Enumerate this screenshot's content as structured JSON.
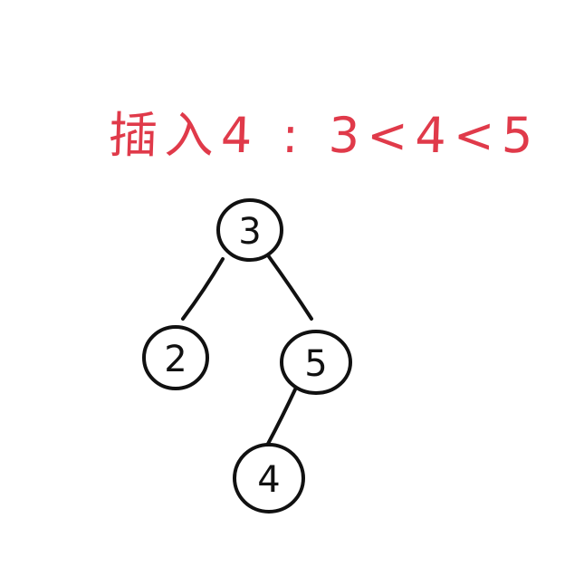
{
  "caption": "插入4 : 3<4<5",
  "colors": {
    "caption": "#e03a4a",
    "ink": "#111111",
    "background": "#ffffff"
  },
  "tree": {
    "nodes": [
      {
        "id": "n3",
        "label": "3"
      },
      {
        "id": "n2",
        "label": "2"
      },
      {
        "id": "n5",
        "label": "5"
      },
      {
        "id": "n4",
        "label": "4"
      }
    ],
    "edges": [
      {
        "from": "n3",
        "to": "n2"
      },
      {
        "from": "n3",
        "to": "n5"
      },
      {
        "from": "n5",
        "to": "n4"
      }
    ]
  }
}
